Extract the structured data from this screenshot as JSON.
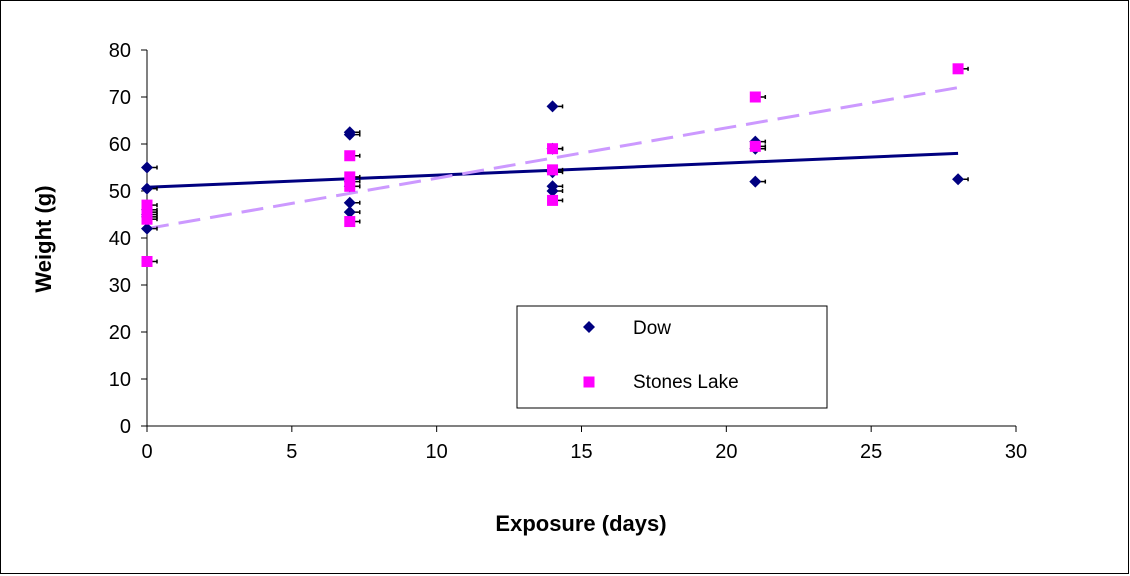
{
  "chart_data": {
    "type": "scatter",
    "title": "",
    "xlabel": "Exposure (days)",
    "ylabel": "Weight (g)",
    "xlim": [
      0,
      30
    ],
    "ylim": [
      0,
      80
    ],
    "xticks": [
      "0",
      "5",
      "10",
      "15",
      "20",
      "25",
      "30"
    ],
    "yticks": [
      "0",
      "10",
      "20",
      "30",
      "40",
      "50",
      "60",
      "70",
      "80"
    ],
    "grid": false,
    "legend_position": "center-right",
    "error_bars": true,
    "series": [
      {
        "name": "Dow",
        "marker": "diamond",
        "color": "#000080",
        "points": [
          {
            "x": 0,
            "y": 55
          },
          {
            "x": 0,
            "y": 50.5
          },
          {
            "x": 0,
            "y": 46
          },
          {
            "x": 0,
            "y": 45
          },
          {
            "x": 0,
            "y": 44.5
          },
          {
            "x": 0,
            "y": 42
          },
          {
            "x": 7,
            "y": 62.5
          },
          {
            "x": 7,
            "y": 62
          },
          {
            "x": 7,
            "y": 52
          },
          {
            "x": 7,
            "y": 51
          },
          {
            "x": 7,
            "y": 47.5
          },
          {
            "x": 7,
            "y": 45.5
          },
          {
            "x": 14,
            "y": 68
          },
          {
            "x": 14,
            "y": 59
          },
          {
            "x": 14,
            "y": 54
          },
          {
            "x": 14,
            "y": 51
          },
          {
            "x": 14,
            "y": 50
          },
          {
            "x": 21,
            "y": 60.5
          },
          {
            "x": 21,
            "y": 59
          },
          {
            "x": 21,
            "y": 52
          },
          {
            "x": 28,
            "y": 52.5
          }
        ],
        "trendline": {
          "style": "solid",
          "color": "#000080",
          "x": [
            0,
            28
          ],
          "y": [
            50.8,
            58
          ]
        }
      },
      {
        "name": "Stones Lake",
        "marker": "square",
        "color": "#FF00FF",
        "points": [
          {
            "x": 0,
            "y": 47
          },
          {
            "x": 0,
            "y": 45.5
          },
          {
            "x": 0,
            "y": 44
          },
          {
            "x": 0,
            "y": 35
          },
          {
            "x": 7,
            "y": 57.5
          },
          {
            "x": 7,
            "y": 53
          },
          {
            "x": 7,
            "y": 51
          },
          {
            "x": 7,
            "y": 43.5
          },
          {
            "x": 14,
            "y": 59
          },
          {
            "x": 14,
            "y": 54.5
          },
          {
            "x": 14,
            "y": 48
          },
          {
            "x": 21,
            "y": 70
          },
          {
            "x": 21,
            "y": 59.5
          },
          {
            "x": 28,
            "y": 76
          }
        ],
        "trendline": {
          "style": "dashed",
          "color": "#CC99FF",
          "x": [
            0,
            28
          ],
          "y": [
            42,
            72
          ]
        }
      }
    ]
  }
}
